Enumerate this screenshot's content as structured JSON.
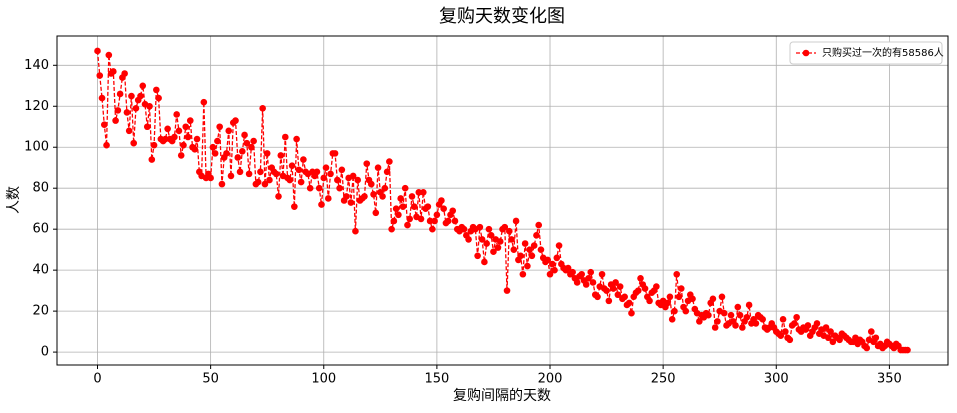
{
  "chart_data": {
    "type": "line",
    "title": "复购天数变化图",
    "x_label": "复购间隔的天数",
    "y_label": "人数",
    "legend": "upper right",
    "grid": true,
    "xlim": [
      -17.9,
      375.9
    ],
    "ylim": [
      -6.3,
      154.3
    ],
    "xticks": [
      0,
      50,
      100,
      150,
      200,
      250,
      300,
      350
    ],
    "yticks": [
      0,
      20,
      40,
      60,
      80,
      100,
      120,
      140
    ],
    "x": [
      0,
      1,
      2,
      3,
      4,
      5,
      6,
      7,
      8,
      9,
      10,
      11,
      12,
      13,
      14,
      15,
      16,
      17,
      18,
      19,
      20,
      21,
      22,
      23,
      24,
      25,
      26,
      27,
      28,
      29,
      30,
      31,
      32,
      33,
      34,
      35,
      36,
      37,
      38,
      39,
      40,
      41,
      42,
      43,
      44,
      45,
      46,
      47,
      48,
      49,
      50,
      51,
      52,
      53,
      54,
      55,
      56,
      57,
      58,
      59,
      60,
      61,
      62,
      63,
      64,
      65,
      66,
      67,
      68,
      69,
      70,
      71,
      72,
      73,
      74,
      75,
      76,
      77,
      78,
      79,
      80,
      81,
      82,
      83,
      84,
      85,
      86,
      87,
      88,
      89,
      90,
      91,
      92,
      93,
      94,
      95,
      96,
      97,
      98,
      99,
      100,
      101,
      102,
      103,
      104,
      105,
      106,
      107,
      108,
      109,
      110,
      111,
      112,
      113,
      114,
      115,
      116,
      117,
      118,
      119,
      120,
      121,
      122,
      123,
      124,
      125,
      126,
      127,
      128,
      129,
      130,
      131,
      132,
      133,
      134,
      135,
      136,
      137,
      138,
      139,
      140,
      141,
      142,
      143,
      144,
      145,
      146,
      147,
      148,
      149,
      150,
      151,
      152,
      153,
      154,
      155,
      156,
      157,
      158,
      159,
      160,
      161,
      162,
      163,
      164,
      165,
      166,
      167,
      168,
      169,
      170,
      171,
      172,
      173,
      174,
      175,
      176,
      177,
      178,
      179,
      180,
      181,
      182,
      183,
      184,
      185,
      186,
      187,
      188,
      189,
      190,
      191,
      192,
      193,
      194,
      195,
      196,
      197,
      198,
      199,
      200,
      201,
      202,
      203,
      204,
      205,
      206,
      207,
      208,
      209,
      210,
      211,
      212,
      213,
      214,
      215,
      216,
      217,
      218,
      219,
      220,
      221,
      222,
      223,
      224,
      225,
      226,
      227,
      228,
      229,
      230,
      231,
      232,
      233,
      234,
      235,
      236,
      237,
      238,
      239,
      240,
      241,
      242,
      243,
      244,
      245,
      246,
      247,
      248,
      249,
      250,
      251,
      252,
      253,
      254,
      255,
      256,
      257,
      258,
      259,
      260,
      261,
      262,
      263,
      264,
      265,
      266,
      267,
      268,
      269,
      270,
      271,
      272,
      273,
      274,
      275,
      276,
      277,
      278,
      279,
      280,
      281,
      282,
      283,
      284,
      285,
      286,
      287,
      288,
      289,
      290,
      291,
      292,
      293,
      294,
      295,
      296,
      297,
      298,
      299,
      300,
      301,
      302,
      303,
      304,
      305,
      306,
      307,
      308,
      309,
      310,
      311,
      312,
      313,
      314,
      315,
      316,
      317,
      318,
      319,
      320,
      321,
      322,
      323,
      324,
      325,
      326,
      327,
      328,
      329,
      330,
      331,
      332,
      333,
      334,
      335,
      336,
      337,
      338,
      339,
      340,
      341,
      342,
      343,
      344,
      345,
      346,
      347,
      348,
      349,
      350,
      351,
      352,
      353,
      354,
      355,
      356,
      357,
      358
    ],
    "series": [
      {
        "name": "只购买过一次的有58586人",
        "color": "#ff0000",
        "values": [
          147,
          135,
          124,
          111,
          101,
          145,
          136,
          137,
          113,
          118,
          126,
          134,
          136,
          117,
          108,
          125,
          102,
          119,
          123,
          125,
          130,
          121,
          110,
          120,
          94,
          101,
          128,
          124,
          104,
          103,
          104,
          109,
          104,
          103,
          105,
          116,
          108,
          96,
          101,
          110,
          105,
          113,
          100,
          99,
          104,
          88,
          86,
          122,
          85,
          87,
          85,
          100,
          97,
          103,
          110,
          82,
          95,
          97,
          108,
          86,
          112,
          113,
          95,
          88,
          98,
          106,
          102,
          87,
          100,
          103,
          82,
          83,
          88,
          119,
          82,
          97,
          84,
          90,
          88,
          87,
          76,
          96,
          86,
          105,
          85,
          84,
          91,
          71,
          104,
          89,
          83,
          94,
          88,
          87,
          80,
          88,
          86,
          88,
          80,
          72,
          85,
          90,
          75,
          87,
          97,
          97,
          84,
          80,
          89,
          74,
          76,
          85,
          73,
          86,
          59,
          84,
          74,
          75,
          76,
          92,
          84,
          82,
          77,
          68,
          90,
          78,
          76,
          80,
          88,
          93,
          60,
          64,
          70,
          67,
          75,
          71,
          80,
          62,
          65,
          76,
          71,
          66,
          78,
          65,
          78,
          70,
          71,
          64,
          60,
          64,
          67,
          72,
          74,
          70,
          63,
          64,
          67,
          69,
          64,
          60,
          59,
          61,
          60,
          57,
          55,
          59,
          61,
          60,
          47,
          61,
          55,
          44,
          53,
          60,
          57,
          49,
          55,
          51,
          54,
          60,
          61,
          30,
          59,
          55,
          50,
          64,
          45,
          47,
          38,
          53,
          42,
          50,
          47,
          52,
          57,
          62,
          50,
          46,
          44,
          45,
          38,
          43,
          40,
          46,
          52,
          43,
          41,
          40,
          41,
          38,
          39,
          36,
          34,
          37,
          38,
          35,
          33,
          36,
          39,
          34,
          28,
          27,
          32,
          38,
          31,
          30,
          25,
          33,
          31,
          34,
          28,
          32,
          26,
          27,
          23,
          24,
          19,
          27,
          29,
          30,
          36,
          33,
          31,
          27,
          25,
          29,
          30,
          32,
          24,
          23,
          25,
          22,
          24,
          27,
          16,
          20,
          38,
          27,
          31,
          22,
          20,
          25,
          28,
          26,
          21,
          19,
          15,
          18,
          17,
          19,
          18,
          24,
          26,
          12,
          15,
          20,
          27,
          19,
          13,
          14,
          18,
          15,
          13,
          22,
          18,
          12,
          15,
          17,
          23,
          14,
          16,
          14,
          18,
          17,
          16,
          12,
          11,
          12,
          14,
          12,
          10,
          9,
          8,
          16,
          10,
          7,
          6,
          13,
          14,
          17,
          11,
          10,
          12,
          11,
          13,
          8,
          10,
          12,
          14,
          9,
          11,
          8,
          12,
          7,
          10,
          5,
          8,
          7,
          6,
          9,
          8,
          7,
          6,
          5,
          5,
          7,
          4,
          6,
          5,
          3,
          2,
          6,
          10,
          5,
          7,
          3,
          4,
          2,
          3,
          5,
          4,
          3,
          2,
          4,
          3,
          1,
          1,
          1,
          1
        ]
      }
    ]
  }
}
